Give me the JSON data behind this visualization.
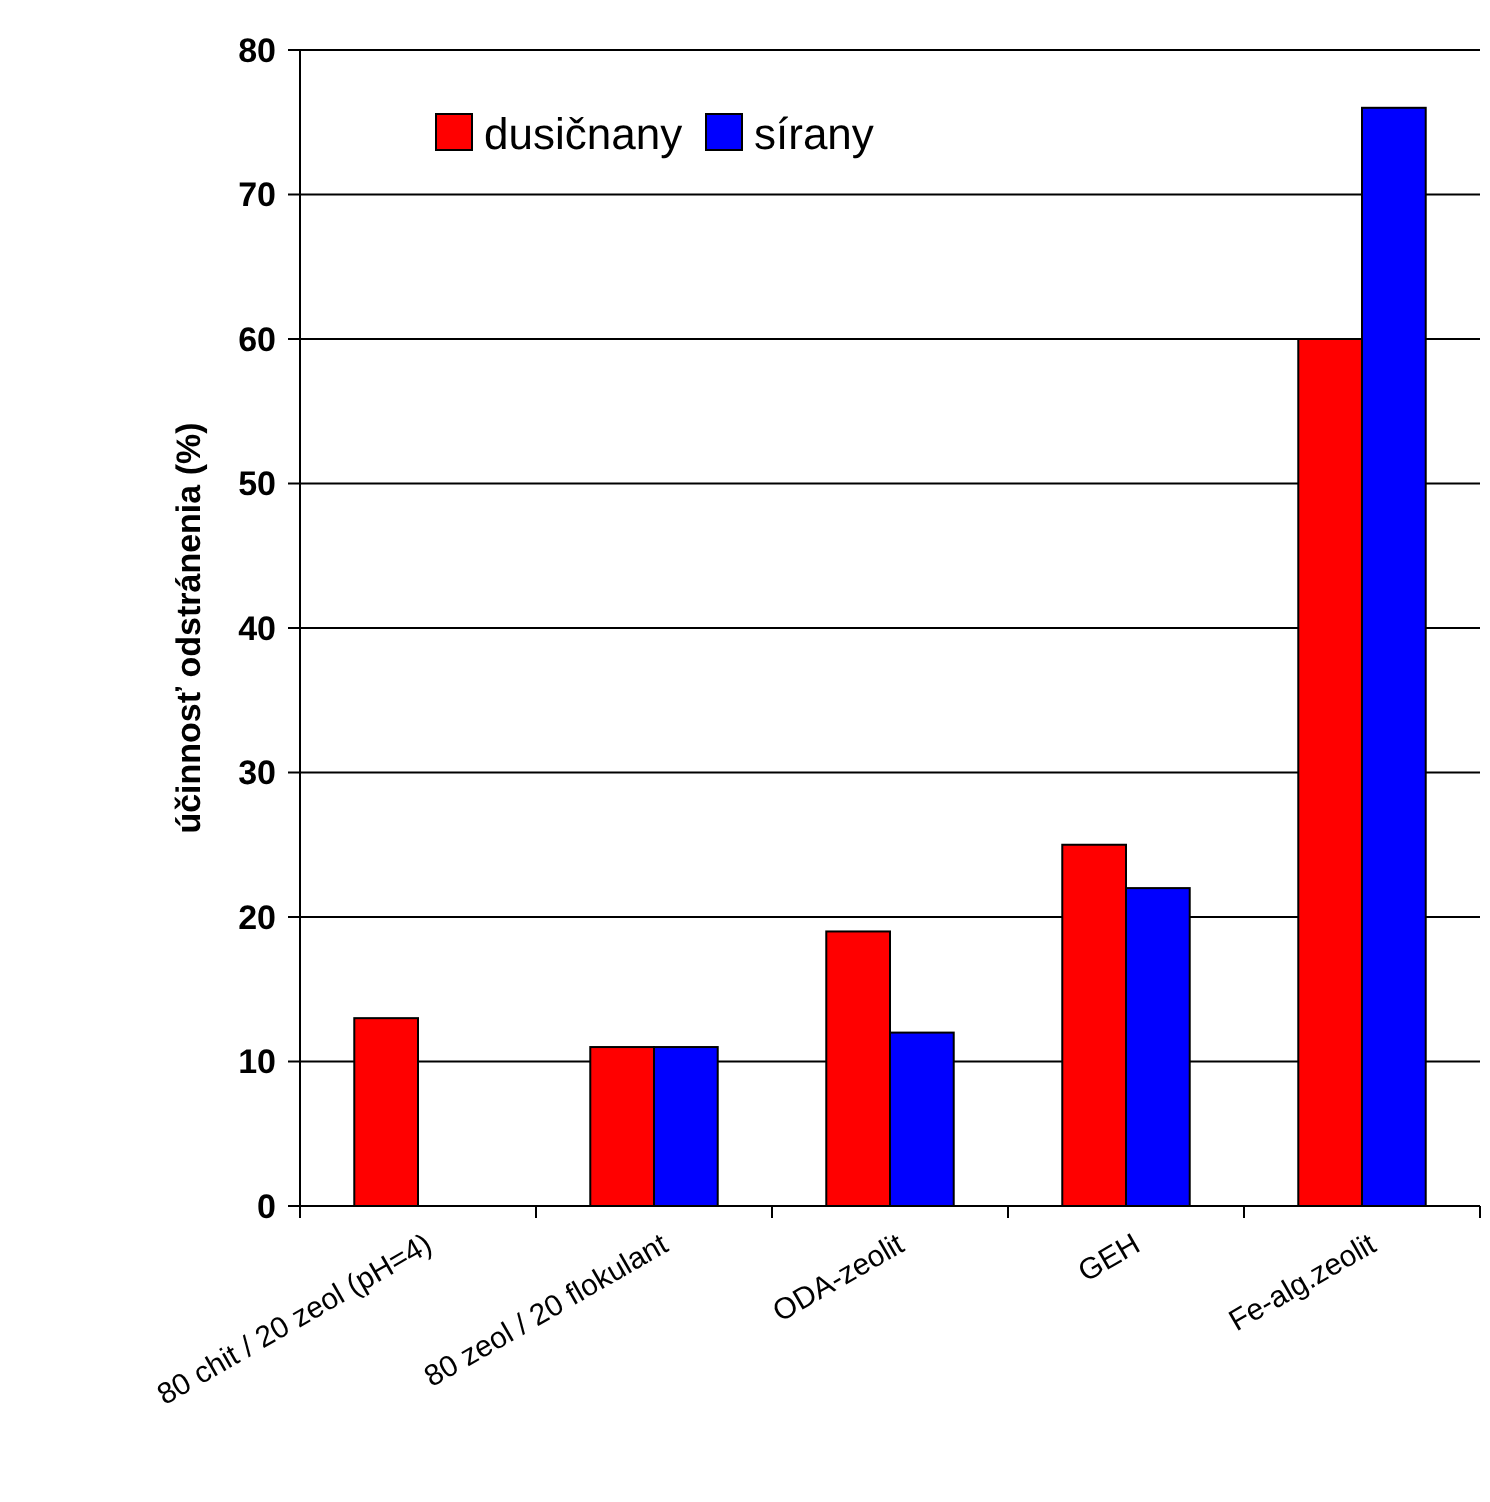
{
  "chart_data": {
    "type": "bar",
    "ylabel": "účinnosť odstránenia (%)",
    "categories": [
      "80 chit / 20 zeol (pH=4)",
      "80 zeol / 20 flokulant",
      "ODA-zeolit",
      "GEH",
      "Fe-alg.zeolit"
    ],
    "series": [
      {
        "name": "dusičnany",
        "color": "#ff0000",
        "values": [
          13,
          11,
          19,
          25,
          60
        ]
      },
      {
        "name": "sírany",
        "color": "#0000ff",
        "values": [
          null,
          11,
          12,
          22,
          76
        ]
      }
    ],
    "ylim": [
      0,
      80
    ],
    "yticks": [
      0,
      10,
      20,
      30,
      40,
      50,
      60,
      70,
      80
    ],
    "grid": "y",
    "legend": "top left"
  }
}
